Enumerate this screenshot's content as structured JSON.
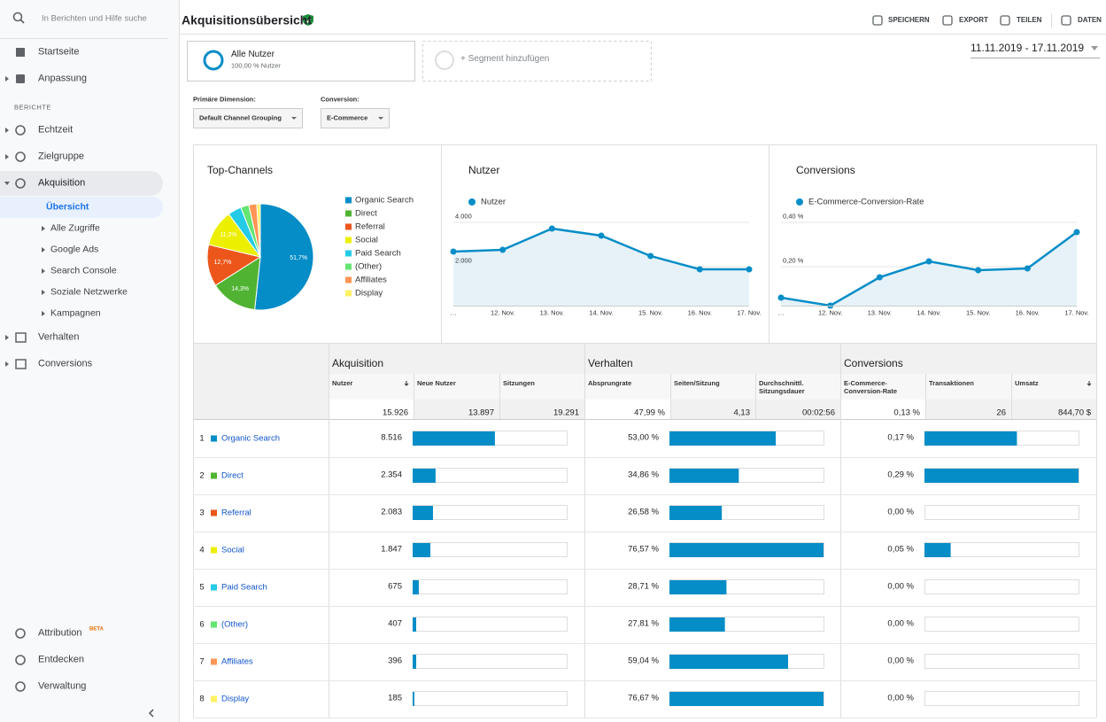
{
  "sidebar": {
    "search": "In Berichten und Hilfe suche",
    "top": [
      "Startseite",
      "Anpassung"
    ],
    "section": "BERICHTE",
    "reports": [
      "Echtzeit",
      "Zielgruppe",
      "Akquisition"
    ],
    "acq_sub": [
      "Übersicht",
      "Alle Zugriffe",
      "Google Ads",
      "Search Console",
      "Soziale Netzwerke",
      "Kampagnen"
    ],
    "reports2": [
      "Verhalten",
      "Conversions"
    ],
    "bottom": [
      "Attribution",
      "Entdecken",
      "Verwaltung"
    ],
    "badge": "BETA"
  },
  "header": {
    "title": "Akquisitionsübersicht",
    "actions": [
      "SPEICHERN",
      "EXPORT",
      "TEILEN",
      "DATEN"
    ]
  },
  "segments": {
    "name": "Alle Nutzer",
    "share": "100,00 % Nutzer",
    "add": "+ Segment hinzufügen",
    "date": "11.11.2019 - 17.11.2019"
  },
  "dimensions": {
    "primary_label": "Primäre Dimension:",
    "primary": "Default Channel Grouping",
    "conversion_label": "Conversion:",
    "conversion": "E-Commerce"
  },
  "chart_data": [
    {
      "type": "pie",
      "title": "Top-Channels",
      "categories": [
        "Organic Search",
        "Direct",
        "Referral",
        "Social",
        "Paid Search",
        "(Other)",
        "Affiliates",
        "Display"
      ],
      "values": [
        51.7,
        14.3,
        12.7,
        11.2,
        4.1,
        2.5,
        2.4,
        1.1
      ],
      "value_labels": [
        "51,7%",
        "14,3%",
        "12,7%",
        "11,2%",
        null,
        null,
        null,
        null
      ],
      "colors": [
        "#058dc7",
        "#50b432",
        "#ed561b",
        "#edef00",
        "#24cbe5",
        "#64e572",
        "#ff9655",
        "#fff263"
      ]
    },
    {
      "type": "line",
      "title": "Nutzer",
      "categories": [
        "…",
        "12. Nov.",
        "13. Nov.",
        "14. Nov.",
        "15. Nov.",
        "16. Nov.",
        "17. Nov."
      ],
      "series": [
        {
          "name": "Nutzer",
          "color": "#058dc7",
          "values": [
            2680,
            2760,
            3720,
            3400,
            2480,
            1880,
            1880
          ]
        }
      ],
      "ylim": [
        240,
        4320
      ],
      "yticks": [
        {
          "value": 2000,
          "label": "2.000"
        },
        {
          "value": 4000,
          "label": "4.000"
        }
      ],
      "grid": true
    },
    {
      "type": "line",
      "title": "Conversions",
      "categories": [
        "…",
        "12. Nov.",
        "13. Nov.",
        "14. Nov.",
        "15. Nov.",
        "16. Nov.",
        "17. Nov."
      ],
      "series": [
        {
          "name": "E-Commerce-Conversion-Rate",
          "color": "#058dc7",
          "values": [
            0.06,
            0.024,
            0.152,
            0.224,
            0.184,
            0.192,
            0.356
          ]
        }
      ],
      "ylim": [
        0.024,
        0.432
      ],
      "yticks": [
        {
          "value": 0.2,
          "label": "0,20 %"
        },
        {
          "value": 0.4,
          "label": "0,40 %"
        }
      ],
      "grid": true
    }
  ],
  "table": {
    "groups": [
      "Akquisition",
      "Verhalten",
      "Conversions"
    ],
    "columns": [
      "Nutzer",
      "Neue Nutzer",
      "Sitzungen",
      "Absprungrate",
      "Seiten/Sitzung",
      "Durchschnittl. Sitzungsdauer",
      "E-Commerce-Conversion-Rate",
      "Transaktionen",
      "Umsatz"
    ],
    "totals": [
      "15.926",
      "13.897",
      "19.291",
      "47,99 %",
      "4,13",
      "00:02:56",
      "0,13 %",
      "26",
      "844,70 $"
    ],
    "rows": [
      {
        "rank": "1",
        "name": "Organic Search",
        "color": "#058dc7",
        "cells": [
          "8.516",
          "53,00 %",
          "0,17 %"
        ],
        "bars": [
          53.4,
          69,
          60
        ]
      },
      {
        "rank": "2",
        "name": "Direct",
        "color": "#50b432",
        "cells": [
          "2.354",
          "34,86 %",
          "0,29 %"
        ],
        "bars": [
          14.9,
          45,
          100
        ]
      },
      {
        "rank": "3",
        "name": "Referral",
        "color": "#ed561b",
        "cells": [
          "2.083",
          "26,58 %",
          "0,00 %"
        ],
        "bars": [
          13.2,
          34,
          0
        ]
      },
      {
        "rank": "4",
        "name": "Social",
        "color": "#edef00",
        "cells": [
          "1.847",
          "76,57 %",
          "0,05 %"
        ],
        "bars": [
          11.5,
          100,
          17
        ]
      },
      {
        "rank": "5",
        "name": "Paid Search",
        "color": "#24cbe5",
        "cells": [
          "675",
          "28,71 %",
          "0,00 %"
        ],
        "bars": [
          4,
          37,
          0
        ]
      },
      {
        "rank": "6",
        "name": "(Other)",
        "color": "#64e572",
        "cells": [
          "407",
          "27,81 %",
          "0,00 %"
        ],
        "bars": [
          2.3,
          36,
          0
        ]
      },
      {
        "rank": "7",
        "name": "Affiliates",
        "color": "#ff9655",
        "cells": [
          "396",
          "59,04 %",
          "0,00 %"
        ],
        "bars": [
          2.3,
          77,
          0
        ]
      },
      {
        "rank": "8",
        "name": "Display",
        "color": "#fff263",
        "cells": [
          "185",
          "76,67 %",
          "0,00 %"
        ],
        "bars": [
          1.1,
          100,
          0
        ]
      }
    ]
  }
}
